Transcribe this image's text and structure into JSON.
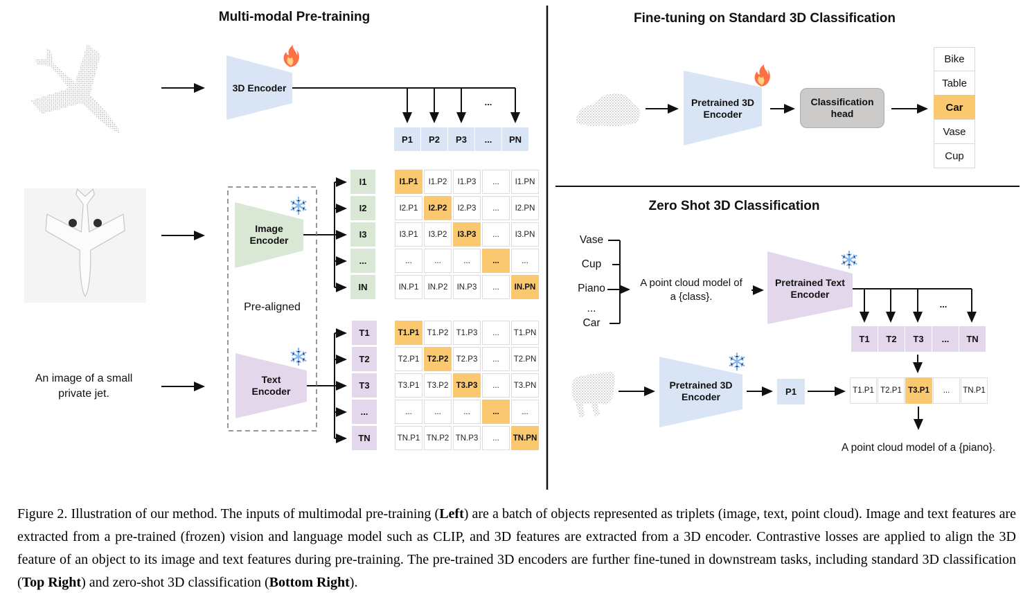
{
  "colors": {
    "blue": "#d9e4f5",
    "green": "#d8e8d4",
    "purple": "#e3d7eb",
    "highlight": "#fac96f",
    "head_gray": "#cccbca"
  },
  "left": {
    "title": "Multi-modal Pre-training",
    "encoder_3d_label": "3D Encoder",
    "image_encoder_label": "Image\nEncoder",
    "text_encoder_label": "Text\nEncoder",
    "pre_aligned_label": "Pre-aligned",
    "input_caption": "An image of a small\nprivate jet.",
    "ellipsis": "...",
    "p_row": [
      "P1",
      "P2",
      "P3",
      "...",
      "PN"
    ],
    "i_col": [
      "I1",
      "I2",
      "I3",
      "...",
      "IN"
    ],
    "t_col": [
      "T1",
      "T2",
      "T3",
      "...",
      "TN"
    ],
    "i_matrix": [
      [
        {
          "t": "I1.P1",
          "hl": true
        },
        "I1.P2",
        "I1.P3",
        "...",
        "I1.PN"
      ],
      [
        "I2.P1",
        {
          "t": "I2.P2",
          "hl": true
        },
        "I2.P3",
        "...",
        "I2.PN"
      ],
      [
        "I3.P1",
        "I3.P2",
        {
          "t": "I3.P3",
          "hl": true
        },
        "...",
        "I3.PN"
      ],
      [
        "...",
        "...",
        "...",
        {
          "t": "...",
          "hl": true
        },
        "..."
      ],
      [
        "IN.P1",
        "IN.P2",
        "IN.P3",
        "...",
        {
          "t": "IN.PN",
          "hl": true
        }
      ]
    ],
    "t_matrix": [
      [
        {
          "t": "T1.P1",
          "hl": true
        },
        "T1.P2",
        "T1.P3",
        "...",
        "T1.PN"
      ],
      [
        "T2.P1",
        {
          "t": "T2.P2",
          "hl": true
        },
        "T2.P3",
        "...",
        "T2.PN"
      ],
      [
        "T3.P1",
        "T3.P2",
        {
          "t": "T3.P3",
          "hl": true
        },
        "...",
        "T3.PN"
      ],
      [
        "...",
        "...",
        "...",
        {
          "t": "...",
          "hl": true
        },
        "..."
      ],
      [
        "TN.P1",
        "TN.P2",
        "TN.P3",
        "...",
        {
          "t": "TN.PN",
          "hl": true
        }
      ]
    ]
  },
  "top_right": {
    "title": "Fine-tuning on Standard 3D Classification",
    "encoder_label": "Pretrained 3D\nEncoder",
    "head_label": "Classification\nhead",
    "classes": [
      "Bike",
      "Table",
      {
        "t": "Car",
        "hl": true
      },
      "Vase",
      "Cup"
    ]
  },
  "bottom_right": {
    "title": "Zero Shot 3D Classification",
    "class_list": [
      "Vase",
      "Cup",
      "Piano",
      "...",
      "Car"
    ],
    "prompt": "A point cloud model of\na {class}.",
    "text_encoder_label": "Pretrained Text\nEncoder",
    "encoder_label": "Pretrained 3D\nEncoder",
    "p1_label": "P1",
    "ellipsis": "...",
    "t_row": [
      "T1",
      "T2",
      "T3",
      "...",
      "TN"
    ],
    "result_row": [
      "T1.P1",
      "T2.P1",
      {
        "t": "T3.P1",
        "hl": true
      },
      "...",
      "TN.P1"
    ],
    "result_caption": "A point cloud model of a {piano}."
  },
  "caption": {
    "segments": [
      {
        "t": "Figure 2. Illustration of our method. The inputs of multimodal pre-training (",
        "b": false
      },
      {
        "t": "Left",
        "b": true
      },
      {
        "t": ") are a batch of objects represented as triplets (image, text, point cloud). Image and text features are extracted from a pre-trained (frozen) vision and language model such as CLIP, and 3D features are extracted from a 3D encoder. Contrastive losses are applied to align the 3D feature of an object to its image and text features during pre-training. The pre-trained 3D encoders are further fine-tuned in downstream tasks, including standard 3D classification (",
        "b": false
      },
      {
        "t": "Top Right",
        "b": true
      },
      {
        "t": ") and zero-shot 3D classification (",
        "b": false
      },
      {
        "t": "Bottom Right",
        "b": true
      },
      {
        "t": ").",
        "b": false
      }
    ]
  }
}
